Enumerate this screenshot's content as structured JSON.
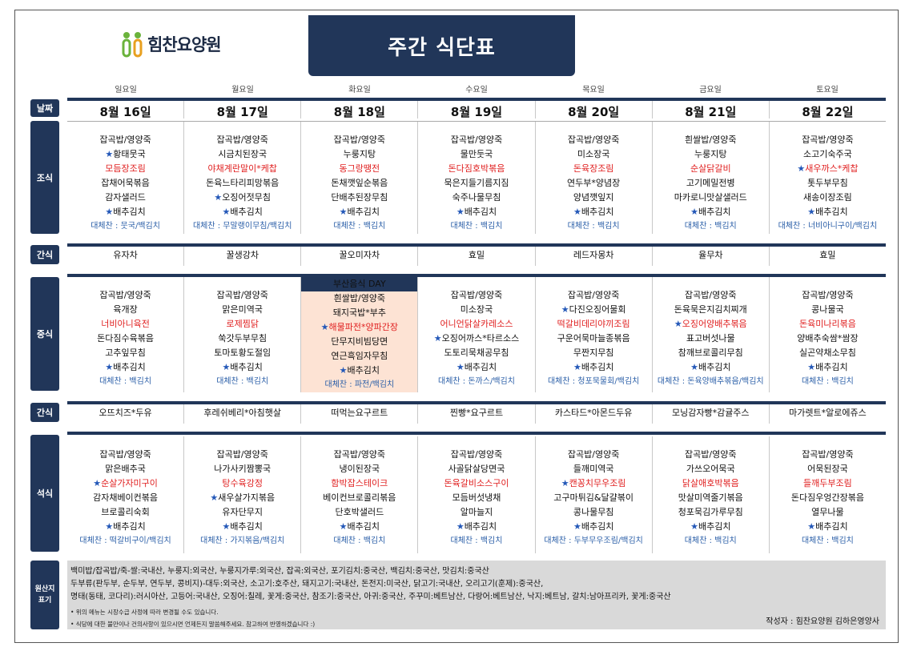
{
  "header": {
    "logo_text": "힘찬요양원",
    "title": "주간 식단표"
  },
  "days": [
    "일요일",
    "월요일",
    "화요일",
    "수요일",
    "목요일",
    "금요일",
    "토요일"
  ],
  "labels": {
    "date": "날짜",
    "breakfast": "조식",
    "snack1": "간식",
    "lunch": "중식",
    "snack2": "간식",
    "dinner": "석식",
    "origin": "원산지\n표기"
  },
  "dates": [
    "8월 16일",
    "8월 17일",
    "8월 18일",
    "8월 19일",
    "8월 20일",
    "8월 21일",
    "8월 22일"
  ],
  "breakfast": [
    {
      "items": [
        "잡곡밥/영양죽",
        "★황태뭇국",
        "모듬장조림",
        "잡채어묵볶음",
        "감자샐러드",
        "★배추김치"
      ],
      "red": [
        2
      ],
      "sub": "대체찬 : 뭇국/백김치"
    },
    {
      "items": [
        "잡곡밥/영양죽",
        "시금치된장국",
        "야채계란말이*케찹",
        "돈육느타리피망볶음",
        "★오징어젓무침",
        "★배추김치"
      ],
      "red": [
        2
      ],
      "sub": "대체찬 : 무말랭이무침/백김치"
    },
    {
      "items": [
        "잡곡밥/영양죽",
        "누룽지탕",
        "동그랑땡전",
        "돈채깻잎순볶음",
        "단배추된장무침",
        "★배추김치"
      ],
      "red": [
        2
      ],
      "sub": "대체찬 : 백김치"
    },
    {
      "items": [
        "잡곡밥/영양죽",
        "물만둣국",
        "돈다짐호박볶음",
        "묵은지들기름지짐",
        "숙주나물무침",
        "★배추김치"
      ],
      "red": [
        2
      ],
      "sub": "대체찬 : 백김치"
    },
    {
      "items": [
        "잡곡밥/영양죽",
        "미소장국",
        "돈육장조림",
        "연두부*양념장",
        "양념깻잎지",
        "★배추김치"
      ],
      "red": [
        2
      ],
      "sub": "대체찬 : 백김치"
    },
    {
      "items": [
        "흰쌀밥/영양죽",
        "누룽지탕",
        "순살닭갈비",
        "고기메밀전병",
        "마카로니맛살샐러드",
        "★배추김치"
      ],
      "red": [
        2
      ],
      "sub": "대체찬 : 백김치"
    },
    {
      "items": [
        "잡곡밥/영양죽",
        "소고기숙주국",
        "★새우까스*케찹",
        "톳두부무침",
        "새송이장조림",
        "★배추김치"
      ],
      "red": [
        2
      ],
      "sub": "대체찬 : 너비아니구이/백김치"
    }
  ],
  "snack1": [
    "유자차",
    "꿀생강차",
    "꿀오미자차",
    "효밀",
    "레드자몽차",
    "율무차",
    "효밀"
  ],
  "lunch_special_label": "부산음식 DAY",
  "lunch": [
    {
      "items": [
        "잡곡밥/영양죽",
        "육개장",
        "너비아니육전",
        "돈다짐수육볶음",
        "고추잎무침",
        "★배추김치"
      ],
      "red": [
        2
      ],
      "sub": "대체찬 : 백김치"
    },
    {
      "items": [
        "잡곡밥/영양죽",
        "맑은미역국",
        "로제찜닭",
        "쑥갓두부무침",
        "토마토황도절임",
        "★배추김치"
      ],
      "red": [
        2
      ],
      "sub": "대체찬 : 백김치"
    },
    {
      "items": [
        "흰쌀밥/영양죽",
        "돼지국밥*부추",
        "★해물파전*양파간장",
        "단무지비빔당면",
        "연근흑임자무침",
        "★배추김치"
      ],
      "red": [
        2
      ],
      "sub": "대체찬 : 파전/백김치"
    },
    {
      "items": [
        "잡곡밥/영양죽",
        "미소장국",
        "어니언닭살카레소스",
        "★오징어까스*타르소스",
        "도토리묵채공무침",
        "★배추김치"
      ],
      "red": [
        2
      ],
      "sub": "대체찬 : 돈까스/백김치"
    },
    {
      "items": [
        "잡곡밥/영양죽",
        "★다진오징어물회",
        "떡갈비데리야끼조림",
        "구운어묵마늘종볶음",
        "무짠지무침",
        "★배추김치"
      ],
      "red": [
        2
      ],
      "sub": "대체찬 : 청포묵물회/백김치"
    },
    {
      "items": [
        "잡곡밥/영양죽",
        "돈육묵은지김치찌개",
        "★오징어양배추볶음",
        "표고버섯나물",
        "참깨브로콜리무침",
        "★배추김치"
      ],
      "red": [
        2
      ],
      "sub": "대체찬 : 돈육양배추볶음/백김치"
    },
    {
      "items": [
        "잡곡밥/영양죽",
        "콩나물국",
        "돈육미나리볶음",
        "양배추숙쌈*쌈장",
        "실곤약채소무침",
        "★배추김치"
      ],
      "red": [
        2
      ],
      "sub": "대체찬 : 백김치"
    }
  ],
  "snack2": [
    "오뜨치즈*두유",
    "후레쉬베리*아침햇살",
    "떠먹는요구르트",
    "찐빵*요구르트",
    "카스타드*아몬드두유",
    "모닝감자빵*감귤주스",
    "마가렛트*알로에쥬스"
  ],
  "dinner": [
    {
      "items": [
        "잡곡밥/영양죽",
        "맑은배추국",
        "★순살가자미구이",
        "감자채베이컨볶음",
        "브로콜리숙회",
        "★배추김치"
      ],
      "red": [
        2
      ],
      "sub": "대체찬 : 떡갈비구이/백김치"
    },
    {
      "items": [
        "잡곡밥/영양죽",
        "나가사키짬뽕국",
        "탕수육강정",
        "★새우살가지볶음",
        "유자단무지",
        "★배추김치"
      ],
      "red": [
        2
      ],
      "sub": "대체찬 : 가지볶음/백김치"
    },
    {
      "items": [
        "잡곡밥/영양죽",
        "냉이된장국",
        "함박잡스테이크",
        "베이컨브로콜리볶음",
        "단호박샐러드",
        "★배추김치"
      ],
      "red": [
        2
      ],
      "sub": "대체찬 : 백김치"
    },
    {
      "items": [
        "잡곡밥/영양죽",
        "사골닭살당면국",
        "돈육갈비소스구이",
        "모듬버섯냉채",
        "알마늘지",
        "★배추김치"
      ],
      "red": [
        2
      ],
      "sub": "대체찬 : 백김치"
    },
    {
      "items": [
        "잡곡밥/영양죽",
        "들깨미역국",
        "★캔꽁치무우조림",
        "고구마튀김&달걀볶이",
        "콩나물무침",
        "★배추김치"
      ],
      "red": [
        2
      ],
      "sub": "대체찬 : 두부무우조림/백김치"
    },
    {
      "items": [
        "잡곡밥/영양죽",
        "가쓰오어묵국",
        "닭살애호박볶음",
        "맛살미역줄기볶음",
        "청포묵김가루무침",
        "★배추김치"
      ],
      "red": [
        2
      ],
      "sub": "대체찬 : 백김치"
    },
    {
      "items": [
        "잡곡밥/영양죽",
        "어묵된장국",
        "들깨두부조림",
        "돈다짐우엉간장볶음",
        "열무나물",
        "★배추김치"
      ],
      "red": [
        2
      ],
      "sub": "대체찬 : 백김치"
    }
  ],
  "origin": {
    "lines": [
      "백미밥/잡곡밥/죽-쌀:국내산, 누룽지:외국산, 누룽지가루:외국산, 잡곡:외국산, 포기김치:중국산, 백김치:중국산, 맛김치:중국산",
      "두부류(판두부, 순두부, 연두부, 콩비지)-대두:외국산, 소고기:호주산, 돼지고기:국내산, 돈전지:미국산, 닭고기:국내산, 오리고기(훈제):중국산,",
      "명태(동태, 코다리):러시아산, 고등어:국내산, 오징어:칠레, 꽃게:중국산, 참조기:중국산, 아귀:중국산, 주꾸미:베트남산, 다랑어:베트남산, 낙지:베트남, 갈치:남아프리카, 꽃게:중국산"
    ],
    "notes": [
      "• 위의 메뉴는 시장수급 사정에 따라 변경될 수도 있습니다.",
      "• 식당에 대한 불만이나 건의사항이 있으시면 언제든지 말씀해주세요. 참고하여 반영하겠습니다 :)"
    ],
    "author": "작성자 : 힘찬요양원 김하은영양사"
  },
  "colors": {
    "navy": "#213659",
    "red": "#e02020",
    "star": "#2458b8",
    "special": "#fde3d4"
  }
}
